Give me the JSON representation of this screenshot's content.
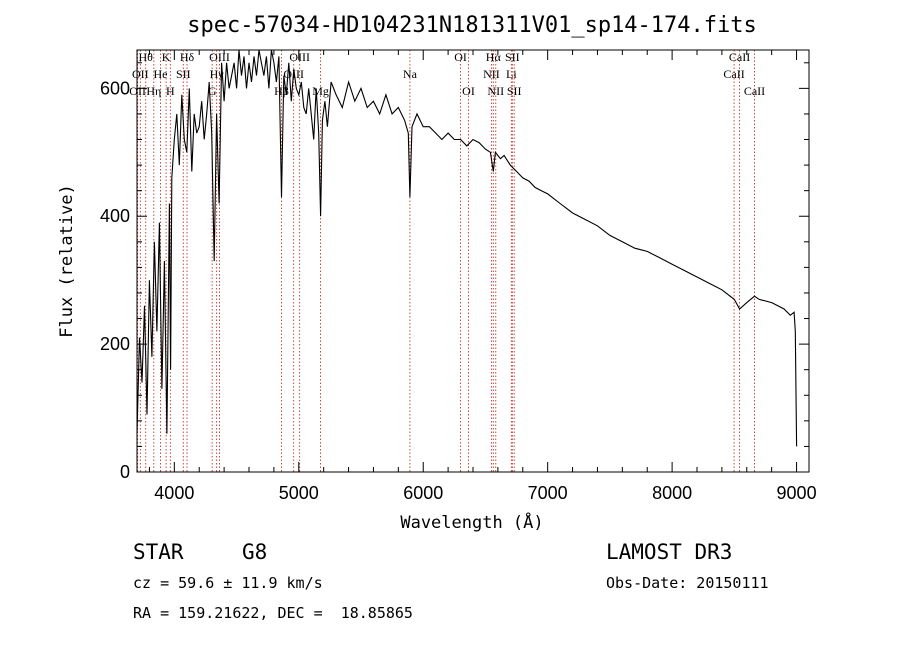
{
  "chart_data": {
    "type": "line",
    "title": "spec-57034-HD104231N181311V01_sp14-174.fits",
    "xlabel": "Wavelength (Å)",
    "ylabel": "Flux (relative)",
    "xlim": [
      3700,
      9100
    ],
    "ylim": [
      0,
      660
    ],
    "xticks": [
      4000,
      5000,
      6000,
      7000,
      8000,
      9000
    ],
    "xtick_labels": [
      "4000",
      "5000",
      "6000",
      "7000",
      "8000",
      "9000"
    ],
    "yticks": [
      0,
      200,
      400,
      600
    ],
    "ytick_labels": [
      "0",
      "200",
      "400",
      "600"
    ],
    "series": [
      {
        "name": "spectrum",
        "x": [
          3700,
          3720,
          3740,
          3760,
          3780,
          3800,
          3820,
          3840,
          3860,
          3880,
          3900,
          3920,
          3940,
          3960,
          3970,
          3980,
          4000,
          4020,
          4040,
          4060,
          4080,
          4100,
          4120,
          4140,
          4160,
          4180,
          4200,
          4220,
          4240,
          4260,
          4280,
          4300,
          4320,
          4340,
          4360,
          4380,
          4400,
          4420,
          4440,
          4460,
          4480,
          4500,
          4520,
          4540,
          4560,
          4580,
          4600,
          4620,
          4640,
          4660,
          4680,
          4700,
          4720,
          4740,
          4760,
          4780,
          4800,
          4820,
          4840,
          4861,
          4880,
          4900,
          4920,
          4940,
          4960,
          4980,
          5000,
          5020,
          5040,
          5060,
          5080,
          5100,
          5120,
          5140,
          5160,
          5175,
          5190,
          5210,
          5230,
          5260,
          5300,
          5350,
          5400,
          5450,
          5500,
          5550,
          5600,
          5650,
          5700,
          5750,
          5800,
          5850,
          5880,
          5893,
          5910,
          5950,
          6000,
          6050,
          6100,
          6150,
          6200,
          6250,
          6300,
          6350,
          6400,
          6450,
          6500,
          6540,
          6563,
          6580,
          6620,
          6650,
          6700,
          6750,
          6800,
          6850,
          6900,
          6950,
          7000,
          7100,
          7200,
          7300,
          7400,
          7500,
          7600,
          7700,
          7800,
          7900,
          8000,
          8100,
          8200,
          8300,
          8400,
          8500,
          8542,
          8600,
          8662,
          8700,
          8800,
          8900,
          8950,
          8980,
          8990,
          9000
        ],
        "y": [
          60,
          210,
          140,
          260,
          90,
          300,
          180,
          360,
          220,
          390,
          130,
          330,
          60,
          420,
          160,
          460,
          520,
          560,
          480,
          590,
          520,
          500,
          600,
          470,
          560,
          530,
          540,
          580,
          520,
          560,
          610,
          530,
          330,
          560,
          420,
          640,
          580,
          640,
          600,
          620,
          640,
          600,
          660,
          620,
          650,
          600,
          640,
          610,
          650,
          620,
          660,
          640,
          620,
          650,
          600,
          660,
          640,
          610,
          650,
          430,
          620,
          590,
          640,
          580,
          630,
          600,
          590,
          610,
          570,
          560,
          600,
          560,
          520,
          600,
          530,
          400,
          550,
          580,
          540,
          610,
          590,
          570,
          610,
          580,
          600,
          570,
          580,
          560,
          590,
          560,
          570,
          550,
          530,
          430,
          540,
          560,
          540,
          540,
          530,
          520,
          530,
          520,
          520,
          510,
          520,
          515,
          505,
          500,
          470,
          500,
          490,
          495,
          480,
          470,
          460,
          455,
          445,
          440,
          435,
          420,
          405,
          395,
          385,
          370,
          360,
          350,
          345,
          335,
          325,
          315,
          305,
          295,
          285,
          270,
          255,
          265,
          275,
          270,
          265,
          255,
          245,
          250,
          220,
          40
        ]
      }
    ],
    "spectral_lines": [
      {
        "wavelength": 3705,
        "label": "OII",
        "row": 2
      },
      {
        "wavelength": 3727,
        "label": "OII",
        "row": 1
      },
      {
        "wavelength": 3770,
        "label": "Hθ",
        "row": 0
      },
      {
        "wavelength": 3835,
        "label": "Hη",
        "row": 2
      },
      {
        "wavelength": 3889,
        "label": "He",
        "row": 1
      },
      {
        "wavelength": 3934,
        "label": "K",
        "row": 0
      },
      {
        "wavelength": 3968,
        "label": "H",
        "row": 2
      },
      {
        "wavelength": 4072,
        "label": "SII",
        "row": 1
      },
      {
        "wavelength": 4102,
        "label": "Hδ",
        "row": 0
      },
      {
        "wavelength": 4304,
        "label": "G",
        "row": 2
      },
      {
        "wavelength": 4340,
        "label": "Hγ",
        "row": 1
      },
      {
        "wavelength": 4363,
        "label": "OIII",
        "row": 0
      },
      {
        "wavelength": 4861,
        "label": "Hβ",
        "row": 2
      },
      {
        "wavelength": 4959,
        "label": "OIII",
        "row": 1
      },
      {
        "wavelength": 5007,
        "label": "OIII",
        "row": 0
      },
      {
        "wavelength": 5175,
        "label": "Mg",
        "row": 2
      },
      {
        "wavelength": 5893,
        "label": "Na",
        "row": 1
      },
      {
        "wavelength": 6300,
        "label": "OI",
        "row": 0
      },
      {
        "wavelength": 6364,
        "label": "OI",
        "row": 2
      },
      {
        "wavelength": 6548,
        "label": "NII",
        "row": 1
      },
      {
        "wavelength": 6563,
        "label": "Hα",
        "row": 0
      },
      {
        "wavelength": 6583,
        "label": "NII",
        "row": 2
      },
      {
        "wavelength": 6708,
        "label": "Li",
        "row": 1
      },
      {
        "wavelength": 6716,
        "label": "SII",
        "row": 0
      },
      {
        "wavelength": 6731,
        "label": "SII",
        "row": 2
      },
      {
        "wavelength": 8498,
        "label": "CaII",
        "row": 1
      },
      {
        "wavelength": 8542,
        "label": "CaII",
        "row": 0
      },
      {
        "wavelength": 8662,
        "label": "CaII",
        "row": 2
      }
    ]
  },
  "info": {
    "class": "STAR",
    "subclass": "G8",
    "survey": "LAMOST DR3",
    "cz": "cz = 59.6 ± 11.9 km/s",
    "obs_date": "Obs-Date: 20150111",
    "radec": "RA = 159.21622, DEC =  18.85865"
  },
  "colors": {
    "line": "#c0392b",
    "trace": "#000000"
  }
}
